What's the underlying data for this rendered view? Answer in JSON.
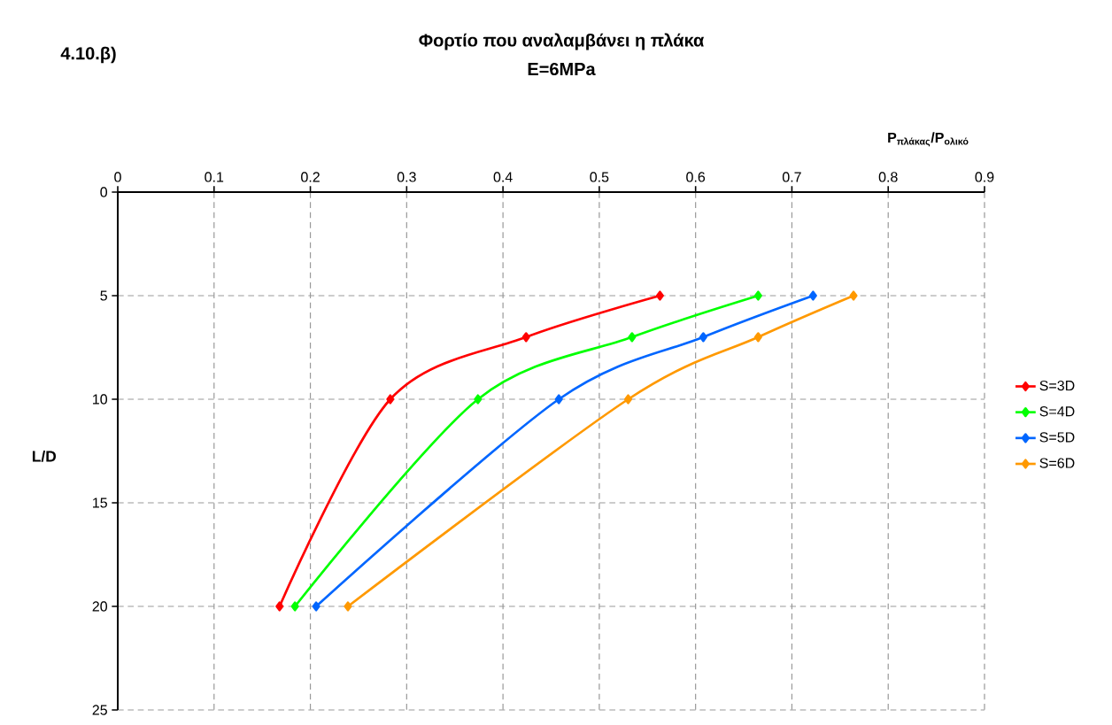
{
  "chart_data": {
    "type": "line",
    "title": "Φορτίο που αναλαμβάνει η πλάκα",
    "subtitle": "E=6MPa",
    "annotations": [
      "4.10.β)"
    ],
    "xlabel": "P$_{πλάκας}$/P$_{ολικό}$",
    "ylabel": "L/D",
    "xlim": [
      0,
      0.9
    ],
    "xticks": [
      0,
      0.1,
      0.2,
      0.3,
      0.4,
      0.5,
      0.6,
      0.7,
      0.8,
      0.9
    ],
    "ylim": [
      25,
      0
    ],
    "yticks": [
      0,
      5,
      10,
      15,
      20,
      25
    ],
    "grid": true,
    "legend": "right",
    "marker": "diamond",
    "line_style": "solid",
    "series": [
      {
        "name": "S=3D",
        "color": "#ff0000",
        "x": [
          0.563,
          0.424,
          0.283,
          0.168
        ],
        "values": [
          5,
          7,
          10,
          20
        ]
      },
      {
        "name": "S=4D",
        "color": "#00ff00",
        "x": [
          0.665,
          0.534,
          0.374,
          0.184
        ],
        "values": [
          5,
          7,
          10,
          20
        ]
      },
      {
        "name": "S=5D",
        "color": "#0066ff",
        "x": [
          0.722,
          0.608,
          0.458,
          0.206
        ],
        "values": [
          5,
          7,
          10,
          20
        ]
      },
      {
        "name": "S=6D",
        "color": "#ff9900",
        "x": [
          0.764,
          0.665,
          0.53,
          0.239
        ],
        "values": [
          5,
          7,
          10,
          20
        ]
      }
    ]
  }
}
